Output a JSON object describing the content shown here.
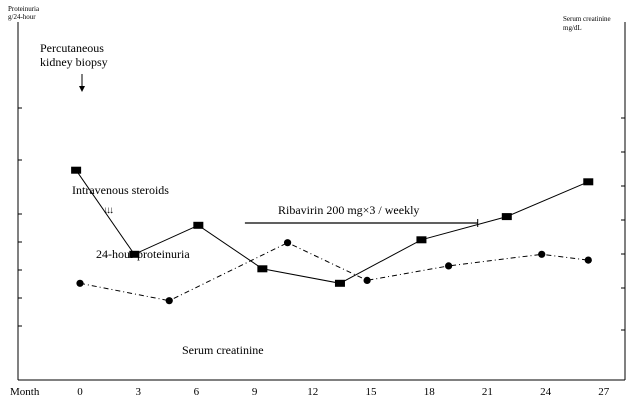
{
  "chart_data": {
    "type": "line",
    "y_left_label_line1": "Proteinuria",
    "y_left_label_line2": "g/24-hour",
    "y_right_label_line1": "Serum creatinine",
    "y_right_label_line2": "mg/dL",
    "x_axis_title": "Month",
    "x_ticks": [
      "0",
      "3",
      "6",
      "9",
      "12",
      "15",
      "18",
      "21",
      "24",
      "27"
    ],
    "xlim": [
      -1,
      28
    ],
    "series": [
      {
        "name": "24-hour proteinuria",
        "marker": "square",
        "style": "solid",
        "x": [
          -0.2,
          2.8,
          6.1,
          9.4,
          13.4,
          17.6,
          22.0,
          26.2
        ],
        "y": [
          62,
          33,
          43,
          28,
          23,
          38,
          46,
          58
        ]
      },
      {
        "name": "Serum creatinine",
        "marker": "circle",
        "style": "dashdot",
        "x": [
          0.0,
          4.6,
          10.7,
          14.8,
          19.0,
          23.8,
          26.2
        ],
        "y": [
          23,
          17,
          37,
          24,
          29,
          33,
          31
        ]
      }
    ],
    "annotations": {
      "biopsy_line1": "Percutaneous",
      "biopsy_line2": "kidney biopsy",
      "steroids": "Intravenous steroids",
      "steroid_marks": "↓↓↓",
      "ribavirin": "Ribavirin 200 mg×3 / weekly",
      "ribavirin_start_month": 8.5,
      "ribavirin_end_month": 20.5
    }
  }
}
